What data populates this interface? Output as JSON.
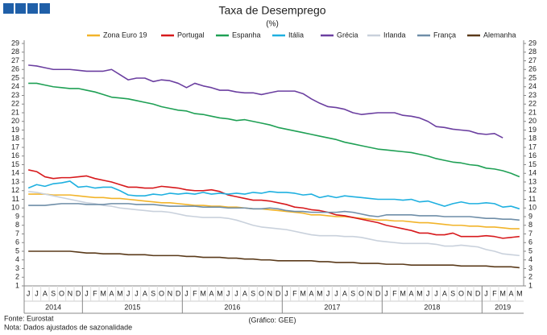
{
  "chart_data": {
    "type": "line",
    "title": "Taxa de Desemprego",
    "subtitle": "(%)",
    "source": "Fonte: Eurostat",
    "note": "Nota: Dados ajustados de sazonalidade",
    "credit": "(Gráfico: GEE)",
    "categories": [
      "J",
      "J",
      "A",
      "S",
      "O",
      "N",
      "D",
      "J",
      "F",
      "M",
      "A",
      "M",
      "J",
      "J",
      "A",
      "S",
      "O",
      "N",
      "D",
      "J",
      "F",
      "M",
      "A",
      "M",
      "J",
      "J",
      "A",
      "S",
      "O",
      "N",
      "D",
      "J",
      "F",
      "M",
      "A",
      "M",
      "J",
      "J",
      "A",
      "S",
      "O",
      "N",
      "D",
      "J",
      "F",
      "M",
      "A",
      "M",
      "J",
      "J",
      "A",
      "S",
      "O",
      "N",
      "D",
      "J",
      "F",
      "M",
      "A",
      "M"
    ],
    "years": [
      "2014",
      "2015",
      "2016",
      "2017",
      "2018",
      "2019"
    ],
    "ylim": [
      1,
      29
    ],
    "yticks": [
      1,
      2,
      3,
      4,
      5,
      6,
      7,
      8,
      9,
      10,
      11,
      12,
      13,
      14,
      15,
      16,
      17,
      18,
      19,
      20,
      21,
      22,
      23,
      24,
      25,
      26,
      27,
      28,
      29
    ],
    "grid": false,
    "legend": "top",
    "series": [
      {
        "name": "Zona Euro 19",
        "color": "#f2b42a",
        "values": [
          11.6,
          11.6,
          11.6,
          11.5,
          11.5,
          11.5,
          11.4,
          11.3,
          11.2,
          11.2,
          11.1,
          11.1,
          11.0,
          10.9,
          10.8,
          10.7,
          10.6,
          10.6,
          10.5,
          10.4,
          10.3,
          10.3,
          10.2,
          10.2,
          10.1,
          10.1,
          10.0,
          9.9,
          9.9,
          9.8,
          9.7,
          9.6,
          9.5,
          9.4,
          9.2,
          9.2,
          9.1,
          9.0,
          9.0,
          8.9,
          8.8,
          8.7,
          8.6,
          8.6,
          8.5,
          8.5,
          8.4,
          8.3,
          8.3,
          8.2,
          8.1,
          8.0,
          8.0,
          7.9,
          7.9,
          7.8,
          7.8,
          7.7,
          7.6,
          7.6
        ]
      },
      {
        "name": "Portugal",
        "color": "#d7191c",
        "values": [
          14.4,
          14.2,
          13.6,
          13.4,
          13.5,
          13.5,
          13.6,
          13.7,
          13.4,
          13.2,
          13.0,
          12.7,
          12.4,
          12.4,
          12.3,
          12.3,
          12.5,
          12.4,
          12.3,
          12.1,
          12.0,
          12.0,
          12.1,
          11.9,
          11.5,
          11.3,
          11.1,
          10.9,
          10.9,
          10.8,
          10.6,
          10.4,
          10.1,
          10.0,
          9.8,
          9.7,
          9.5,
          9.2,
          9.1,
          8.9,
          8.7,
          8.5,
          8.3,
          8.0,
          7.8,
          7.6,
          7.4,
          7.1,
          7.1,
          6.9,
          6.9,
          7.1,
          6.7,
          6.7,
          6.7,
          6.8,
          6.7,
          6.5,
          6.6,
          6.7
        ]
      },
      {
        "name": "Espanha",
        "color": "#1fa055",
        "values": [
          24.4,
          24.4,
          24.2,
          24.0,
          23.9,
          23.8,
          23.8,
          23.6,
          23.4,
          23.1,
          22.8,
          22.7,
          22.6,
          22.4,
          22.2,
          22.0,
          21.7,
          21.5,
          21.3,
          21.2,
          20.9,
          20.8,
          20.6,
          20.4,
          20.3,
          20.1,
          20.2,
          20.0,
          19.8,
          19.6,
          19.3,
          19.1,
          18.9,
          18.7,
          18.5,
          18.3,
          18.1,
          17.9,
          17.6,
          17.4,
          17.2,
          17.0,
          16.8,
          16.7,
          16.6,
          16.5,
          16.4,
          16.2,
          16.0,
          15.7,
          15.5,
          15.3,
          15.2,
          15.0,
          14.9,
          14.6,
          14.5,
          14.3,
          14.0,
          13.6
        ]
      },
      {
        "name": "Itália",
        "color": "#1fb0e0",
        "values": [
          12.3,
          12.7,
          12.5,
          12.8,
          12.9,
          13.1,
          12.4,
          12.5,
          12.3,
          12.4,
          12.4,
          12.0,
          11.5,
          11.4,
          11.4,
          11.6,
          11.5,
          11.7,
          11.6,
          11.7,
          11.6,
          11.8,
          11.6,
          11.7,
          11.6,
          11.7,
          11.6,
          11.8,
          11.7,
          11.9,
          11.8,
          11.8,
          11.7,
          11.5,
          11.6,
          11.2,
          11.4,
          11.2,
          11.4,
          11.3,
          11.2,
          11.1,
          11.0,
          11.0,
          11.0,
          10.9,
          11.0,
          10.7,
          10.8,
          10.5,
          10.2,
          10.5,
          10.7,
          10.5,
          10.5,
          10.6,
          10.5,
          10.1,
          10.2,
          9.9
        ]
      },
      {
        "name": "Grécia",
        "color": "#6b3fa0",
        "values": [
          26.5,
          26.4,
          26.2,
          26.0,
          26.0,
          26.0,
          25.9,
          25.8,
          25.8,
          25.8,
          26.0,
          25.4,
          24.8,
          25.0,
          25.0,
          24.6,
          24.8,
          24.7,
          24.4,
          23.9,
          24.4,
          24.1,
          23.9,
          23.6,
          23.6,
          23.4,
          23.3,
          23.3,
          23.1,
          23.3,
          23.5,
          23.5,
          23.5,
          23.2,
          22.6,
          22.1,
          21.7,
          21.6,
          21.4,
          21.0,
          20.8,
          20.9,
          21.0,
          21.0,
          21.0,
          20.7,
          20.6,
          20.4,
          20.0,
          19.4,
          19.3,
          19.1,
          19.0,
          18.9,
          18.6,
          18.5,
          18.6,
          18.1,
          null,
          null
        ]
      },
      {
        "name": "Irlanda",
        "color": "#c9d1dc",
        "values": [
          11.9,
          11.8,
          11.6,
          11.4,
          11.2,
          11.0,
          10.8,
          10.6,
          10.5,
          10.3,
          10.2,
          10.0,
          9.9,
          9.8,
          9.7,
          9.6,
          9.6,
          9.5,
          9.3,
          9.1,
          9.0,
          8.9,
          8.9,
          8.9,
          8.8,
          8.6,
          8.3,
          8.0,
          7.8,
          7.7,
          7.6,
          7.5,
          7.3,
          7.1,
          6.9,
          6.8,
          6.8,
          6.8,
          6.7,
          6.7,
          6.6,
          6.4,
          6.2,
          6.1,
          6.0,
          5.9,
          5.9,
          5.9,
          5.9,
          5.8,
          5.6,
          5.6,
          5.7,
          5.6,
          5.5,
          5.2,
          5.0,
          4.7,
          4.6,
          4.5
        ]
      },
      {
        "name": "França",
        "color": "#6f8ea8",
        "values": [
          10.3,
          10.3,
          10.3,
          10.4,
          10.5,
          10.5,
          10.5,
          10.4,
          10.4,
          10.4,
          10.5,
          10.5,
          10.5,
          10.4,
          10.4,
          10.4,
          10.3,
          10.2,
          10.2,
          10.2,
          10.2,
          10.1,
          10.1,
          10.1,
          10.0,
          10.0,
          10.0,
          9.9,
          9.9,
          10.0,
          9.9,
          9.7,
          9.6,
          9.6,
          9.5,
          9.5,
          9.5,
          9.5,
          9.6,
          9.5,
          9.3,
          9.1,
          9.0,
          9.2,
          9.2,
          9.2,
          9.2,
          9.1,
          9.1,
          9.1,
          9.0,
          9.0,
          9.0,
          9.0,
          8.9,
          8.8,
          8.8,
          8.7,
          8.7,
          8.6
        ]
      },
      {
        "name": "Alemanha",
        "color": "#5a3a1a",
        "values": [
          5.0,
          5.0,
          5.0,
          5.0,
          5.0,
          5.0,
          4.9,
          4.8,
          4.8,
          4.7,
          4.7,
          4.7,
          4.6,
          4.6,
          4.6,
          4.5,
          4.5,
          4.5,
          4.5,
          4.4,
          4.4,
          4.3,
          4.3,
          4.3,
          4.2,
          4.2,
          4.1,
          4.1,
          4.0,
          4.0,
          3.9,
          3.9,
          3.9,
          3.9,
          3.9,
          3.8,
          3.8,
          3.7,
          3.7,
          3.7,
          3.6,
          3.6,
          3.6,
          3.5,
          3.5,
          3.5,
          3.4,
          3.4,
          3.4,
          3.4,
          3.4,
          3.4,
          3.3,
          3.3,
          3.3,
          3.3,
          3.2,
          3.2,
          3.2,
          3.1
        ]
      }
    ]
  }
}
